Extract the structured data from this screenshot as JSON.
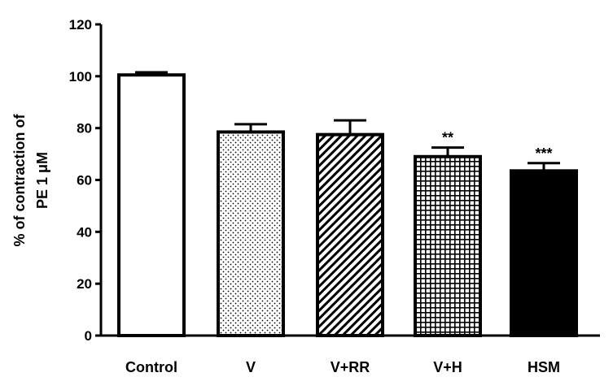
{
  "chart_data": {
    "type": "bar",
    "title": "",
    "xlabel": "",
    "ylabel_line1": "% of contraction of",
    "ylabel_line2": "PE 1 μM",
    "ylim": [
      0,
      120
    ],
    "yticks": [
      0,
      20,
      40,
      60,
      80,
      100,
      120
    ],
    "categories": [
      "Control",
      "V",
      "V+RR",
      "V+H",
      "HSM"
    ],
    "values": [
      100.5,
      78.5,
      77.5,
      69,
      63.5
    ],
    "errors": [
      1,
      3,
      5.5,
      3.5,
      3
    ],
    "annotations": [
      "",
      "",
      "",
      "**",
      "***"
    ],
    "fills": [
      "white",
      "dots",
      "diagonal-hatch",
      "grid",
      "black"
    ],
    "grid": false,
    "legend": "none",
    "colors": {
      "stroke": "#000000",
      "background": "#ffffff"
    }
  }
}
